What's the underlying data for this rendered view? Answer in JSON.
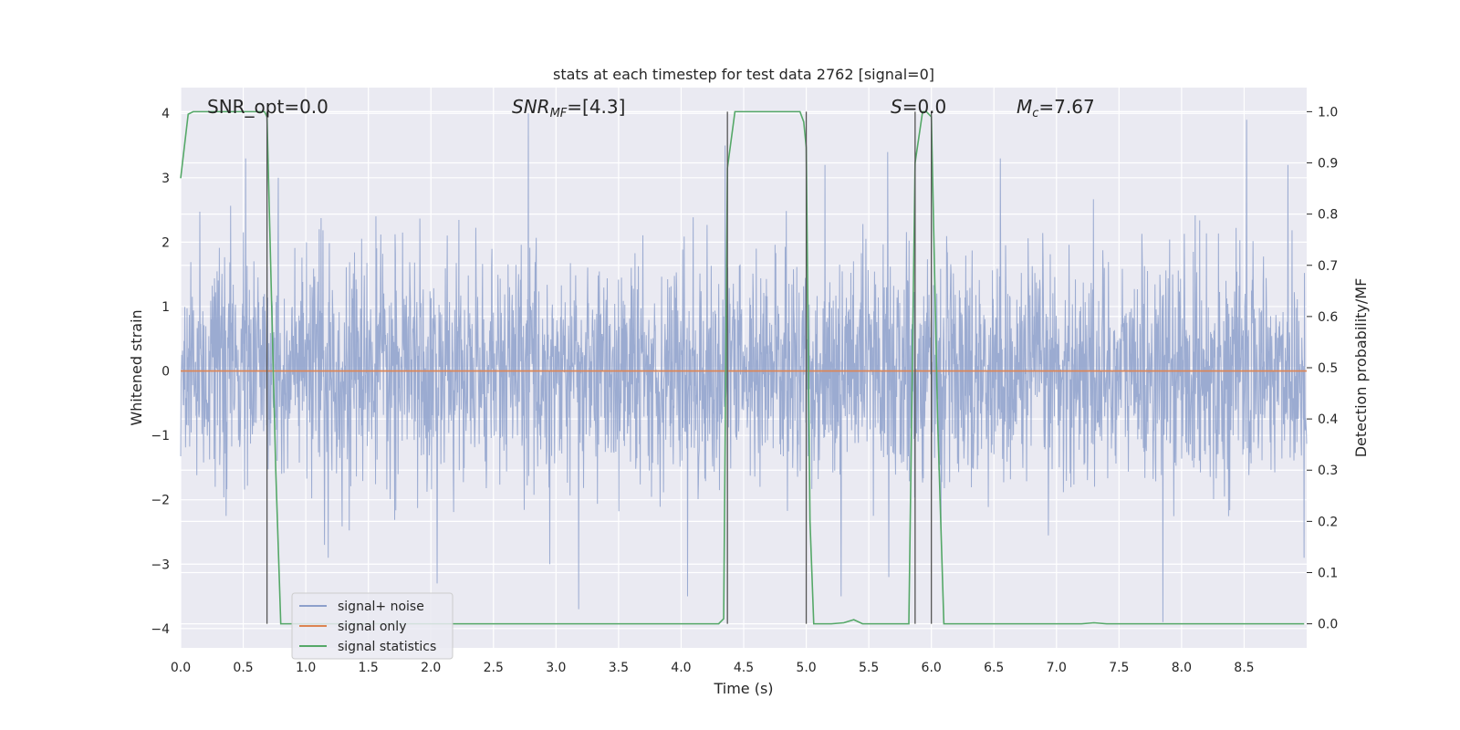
{
  "chart_data": {
    "type": "line",
    "title": "stats at each timestep for test data 2762 [signal=0]",
    "xlabel": "Time (s)",
    "ylabel_left": "Whitened strain",
    "ylabel_right": "Detection probability/MF",
    "xlim": [
      0.0,
      9.0
    ],
    "ylim_left": [
      -4.3,
      4.4
    ],
    "ylim_right": [
      -0.047,
      1.047
    ],
    "x_ticks": [
      0.0,
      0.5,
      1.0,
      1.5,
      2.0,
      2.5,
      3.0,
      3.5,
      4.0,
      4.5,
      5.0,
      5.5,
      6.0,
      6.5,
      7.0,
      7.5,
      8.0,
      8.5
    ],
    "x_tick_labels": [
      "0.0",
      "0.5",
      "1.0",
      "1.5",
      "2.0",
      "2.5",
      "3.0",
      "3.5",
      "4.0",
      "4.5",
      "5.0",
      "5.5",
      "6.0",
      "6.5",
      "7.0",
      "7.5",
      "8.0",
      "8.5"
    ],
    "y_left_ticks": [
      4,
      3,
      2,
      1,
      0,
      -1,
      -2,
      -3,
      -4
    ],
    "y_left_tick_labels": [
      "4",
      "3",
      "2",
      "1",
      "0",
      "−1",
      "−2",
      "−3",
      "−4"
    ],
    "y_right_ticks": [
      1.0,
      0.9,
      0.8,
      0.7,
      0.6,
      0.5,
      0.4,
      0.3,
      0.2,
      0.1,
      0.0
    ],
    "y_right_tick_labels": [
      "1.0",
      "0.9",
      "0.8",
      "0.7",
      "0.6",
      "0.5",
      "0.4",
      "0.3",
      "0.2",
      "0.1",
      "0.0"
    ],
    "grid": true,
    "legend_position": "lower-left",
    "annotations": {
      "snr_opt": "SNR_opt=0.0",
      "snr_mf_base": "SNR",
      "snr_mf_sub": "MF",
      "snr_mf_value": "=[4.3]",
      "s_var": "S",
      "s_value": "=0.0",
      "mc_base": "M",
      "mc_sub": "c",
      "mc_value": "=7.67"
    },
    "vertical_markers_x": [
      0.69,
      4.37,
      5.0,
      5.87,
      6.0
    ],
    "series": [
      {
        "name": "signal+ noise",
        "color": "#8da0cb",
        "kind": "noise",
        "axis": "left",
        "noise_sigma": 0.85,
        "noise_extremes": [
          {
            "x": 0.52,
            "y": 3.3
          },
          {
            "x": 0.78,
            "y": 3.0
          },
          {
            "x": 1.18,
            "y": -2.9
          },
          {
            "x": 1.15,
            "y": -2.7
          },
          {
            "x": 2.05,
            "y": -3.3
          },
          {
            "x": 2.78,
            "y": 4.0
          },
          {
            "x": 2.95,
            "y": -3.0
          },
          {
            "x": 3.18,
            "y": -3.7
          },
          {
            "x": 4.05,
            "y": -3.5
          },
          {
            "x": 4.35,
            "y": 3.5
          },
          {
            "x": 5.15,
            "y": 3.2
          },
          {
            "x": 5.28,
            "y": -3.5
          },
          {
            "x": 5.65,
            "y": 3.4
          },
          {
            "x": 6.55,
            "y": 3.3
          },
          {
            "x": 7.85,
            "y": -3.9
          },
          {
            "x": 8.52,
            "y": 3.9
          },
          {
            "x": 8.85,
            "y": 3.2
          },
          {
            "x": 8.98,
            "y": -2.9
          }
        ]
      },
      {
        "name": "signal only",
        "color": "#dd8452",
        "kind": "line",
        "axis": "left",
        "x": [
          0.0,
          9.0
        ],
        "y": [
          0.0,
          0.0
        ]
      },
      {
        "name": "signal statistics",
        "color": "#55a868",
        "kind": "line",
        "axis": "right",
        "x": [
          0.0,
          0.06,
          0.1,
          0.67,
          0.69,
          0.76,
          0.8,
          4.3,
          4.34,
          4.37,
          4.43,
          4.95,
          4.98,
          5.0,
          5.03,
          5.06,
          5.2,
          5.3,
          5.38,
          5.45,
          5.82,
          5.87,
          5.93,
          5.96,
          6.0,
          6.05,
          6.1,
          6.15,
          7.2,
          7.3,
          7.4,
          8.98
        ],
        "y": [
          0.87,
          0.995,
          1.0,
          1.0,
          0.99,
          0.3,
          0.0,
          0.0,
          0.01,
          0.89,
          1.0,
          1.0,
          0.98,
          0.93,
          0.2,
          0.0,
          0.0,
          0.002,
          0.008,
          0.0,
          0.0,
          0.9,
          1.0,
          1.0,
          0.99,
          0.4,
          0.0,
          0.0,
          0.0,
          0.002,
          0.0,
          0.0
        ]
      }
    ]
  }
}
